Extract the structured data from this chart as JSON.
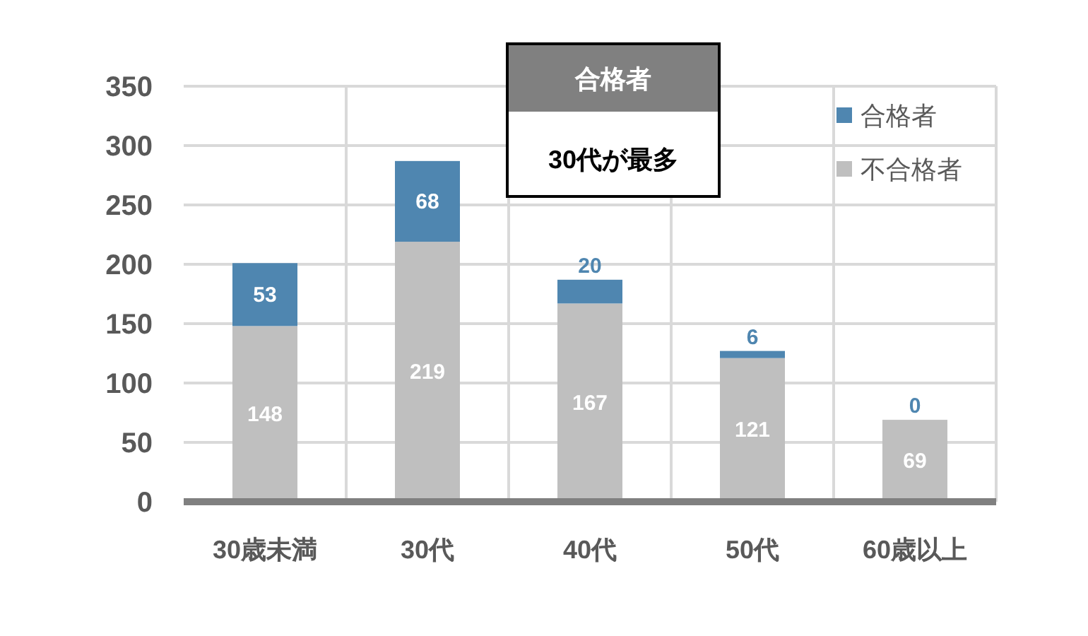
{
  "chart_data": {
    "type": "bar",
    "stacked": true,
    "categories": [
      "30歳未満",
      "30代",
      "40代",
      "50代",
      "60歳以上"
    ],
    "series": [
      {
        "name": "不合格者",
        "color": "#bfbfbf",
        "values": [
          148,
          219,
          167,
          121,
          69
        ]
      },
      {
        "name": "合格者",
        "color": "#4f86b0",
        "values": [
          53,
          68,
          20,
          6,
          0
        ]
      }
    ],
    "ylim": [
      0,
      350
    ],
    "yticks": [
      0,
      50,
      100,
      150,
      200,
      250,
      300,
      350
    ],
    "grid": true,
    "legend": "top right",
    "data_labels": true,
    "annotations": [
      "合格者",
      "30代が最多"
    ]
  }
}
